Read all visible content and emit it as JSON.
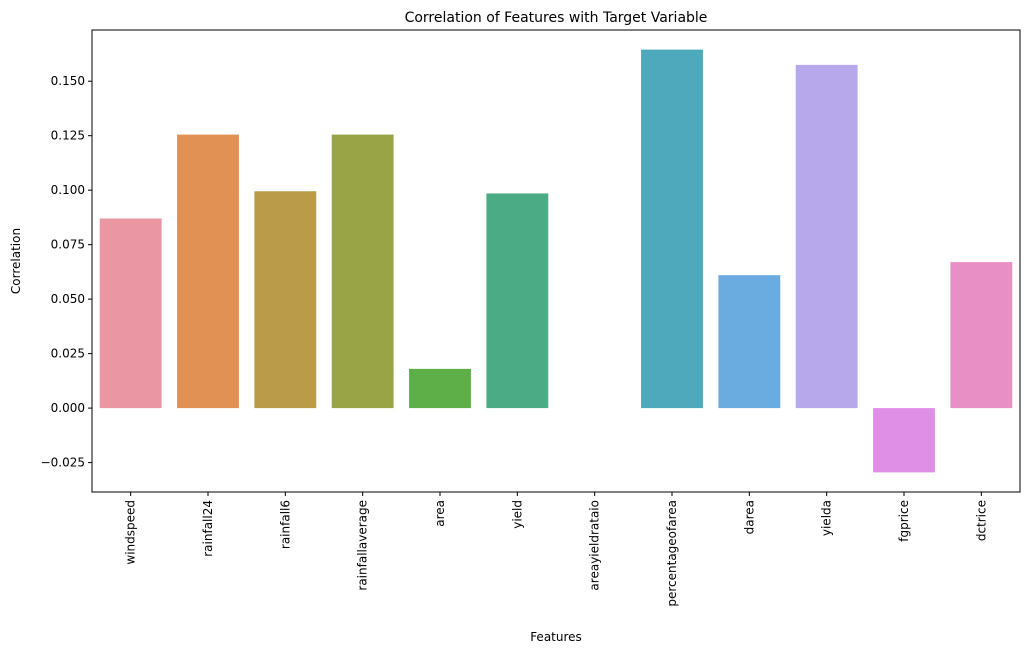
{
  "chart_data": {
    "type": "bar",
    "title": "Correlation of Features with Target Variable",
    "xlabel": "Features",
    "ylabel": "Correlation",
    "ylim": [
      -0.0385,
      0.1735
    ],
    "yticks": [
      -0.025,
      0.0,
      0.025,
      0.05,
      0.075,
      0.1,
      0.125,
      0.15
    ],
    "ytick_labels": [
      "−0.025",
      "0.000",
      "0.025",
      "0.050",
      "0.075",
      "0.100",
      "0.125",
      "0.150"
    ],
    "grid": false,
    "legend": "none",
    "categories": [
      "windspeed",
      "rainfall24",
      "rainfall6",
      "rainfallaverage",
      "area",
      "yield",
      "areayieldrataio",
      "percentageofarea",
      "darea",
      "yielda",
      "fgprice",
      "dctrice"
    ],
    "values": [
      0.087,
      0.1255,
      0.0995,
      0.1255,
      0.018,
      0.0985,
      0.0,
      0.1645,
      0.061,
      0.1575,
      -0.0295,
      0.067
    ],
    "colors": [
      "#ea96a3",
      "#e09153",
      "#b99b49",
      "#98a446",
      "#5eaf48",
      "#4aab84",
      "#4da9a0",
      "#4ea9bd",
      "#6aabe0",
      "#b7a8ec",
      "#e08fe7",
      "#e890c6"
    ]
  }
}
